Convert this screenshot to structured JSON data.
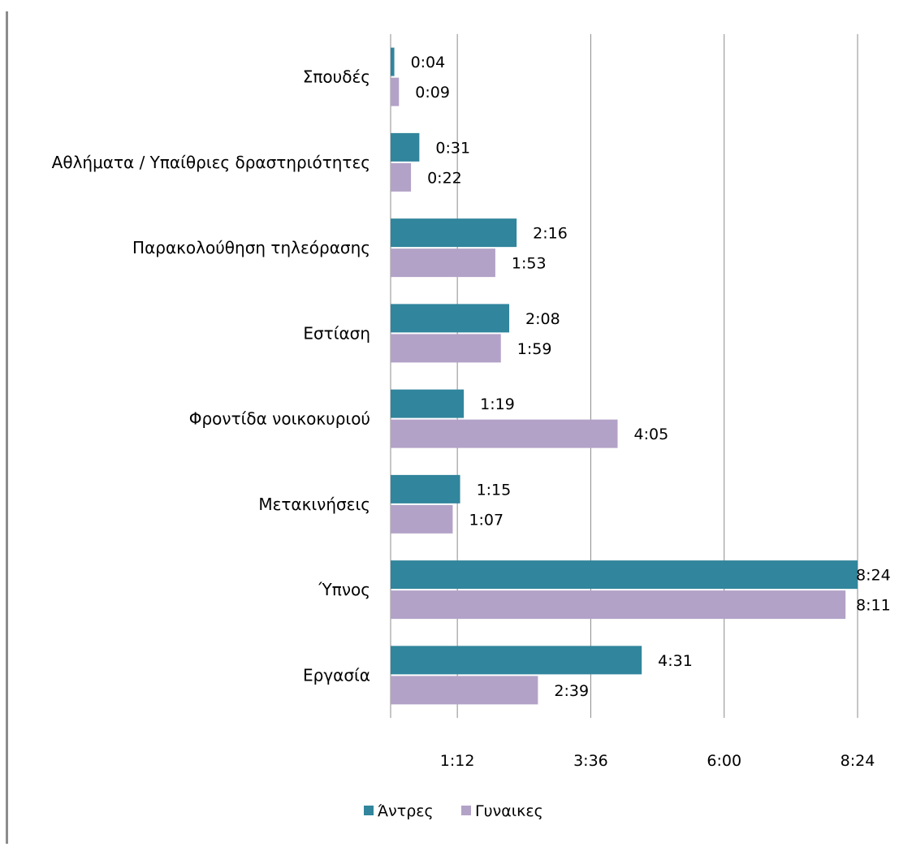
{
  "chart_data": {
    "type": "bar",
    "orientation": "horizontal",
    "categories": [
      "Σπουδές",
      "Αθλήματα / Υπαίθριες δραστηριότητες",
      "Παρακολούθηση τηλεόρασης",
      "Εστίαση",
      "Φροντίδα νοικοκυριού",
      "Μετακινήσεις",
      "Ύπνος",
      "Εργασία"
    ],
    "value_unit": "minutes",
    "series": [
      {
        "name": "Άντρες",
        "color": "#31859C",
        "values": [
          4,
          31,
          136,
          128,
          79,
          75,
          504,
          271
        ],
        "labels": [
          "0:04",
          "0:31",
          "2:16",
          "2:08",
          "1:19",
          "1:15",
          "8:24",
          "4:31"
        ]
      },
      {
        "name": "Γυναίκες",
        "color": "#B3A2C7",
        "values": [
          9,
          22,
          113,
          119,
          245,
          67,
          491,
          159
        ],
        "labels": [
          "0:09",
          "0:22",
          "1:53",
          "1:59",
          "4:05",
          "1:07",
          "8:11",
          "2:39"
        ]
      }
    ],
    "xlim": [
      0,
      504
    ],
    "x_ticks": [
      72,
      216,
      360,
      504
    ],
    "x_tick_labels": [
      "1:12",
      "3:36",
      "6:00",
      "8:24"
    ],
    "grid": true,
    "legend": "bottom",
    "legend_labels": [
      "Άντρες",
      "Γυναικες"
    ]
  }
}
